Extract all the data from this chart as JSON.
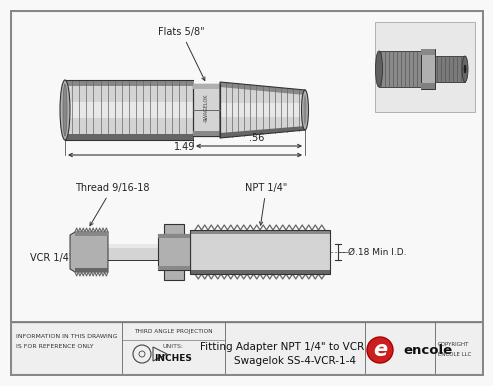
{
  "bg_color": "#f0f0f0",
  "title_text1": "Fitting Adapter NPT 1/4\" to VCR 1/4\"",
  "title_text2": "Swagelok SS-4-VCR-1-4",
  "info_text1": "INFORMATION IN THIS DRAWING",
  "info_text2": "IS FOR REFERENCE ONLY",
  "units_label": "UNITS:",
  "units_value": "INCHES",
  "third_angle": "THIRD ANGLE PROJECTION",
  "encole_text": "encole",
  "dim_149": "1.49",
  "dim_056": ".56",
  "dim_018": "Ø.18 Min I.D.",
  "label_flats": "Flats 5/8\"",
  "label_thread": "Thread 9/16-18",
  "label_npt": "NPT 1/4\"",
  "label_vcr": "VCR 1/4\"",
  "gray_light": "#d4d4d4",
  "gray_mid": "#b0b0b0",
  "gray_dark": "#888888",
  "gray_darker": "#666666",
  "gray_darkest": "#444444",
  "white_bg": "#f8f8f8",
  "line_color": "#333333",
  "dim_color": "#222222",
  "border_color": "#999999"
}
